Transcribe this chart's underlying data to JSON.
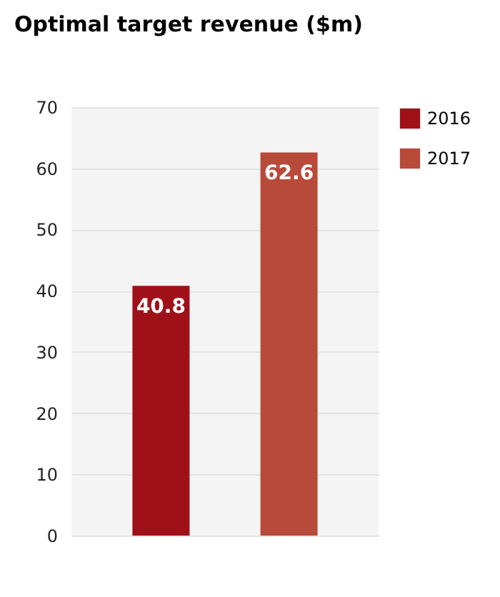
{
  "chart_data": {
    "type": "bar",
    "title": "Optimal target revenue ($m)",
    "categories": [
      null,
      null
    ],
    "series": [
      {
        "name": "2016",
        "color": "#a01018",
        "values": [
          40.8,
          null
        ]
      },
      {
        "name": "2017",
        "color": "#b84a3a",
        "values": [
          null,
          62.6
        ]
      }
    ],
    "ylim": [
      0,
      70
    ],
    "yticks": [
      0,
      10,
      20,
      30,
      40,
      50,
      60,
      70
    ],
    "grid": "y",
    "legend": "top right",
    "tick_labels": "y",
    "data_labels": true
  }
}
